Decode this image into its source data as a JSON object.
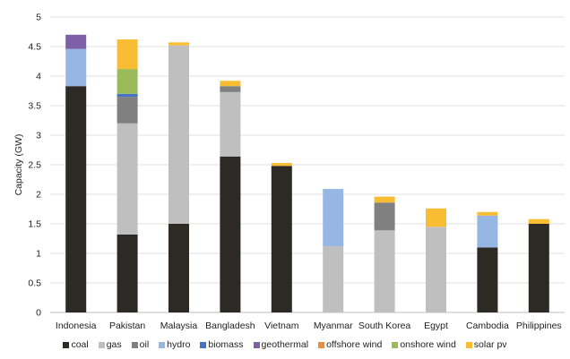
{
  "chart_data": {
    "type": "bar",
    "stacked": true,
    "title": "",
    "xlabel": "",
    "ylabel": "Capacity (GW)",
    "ylim": [
      0,
      5
    ],
    "yticks": [
      "0",
      "0.5",
      "1",
      "1.5",
      "2",
      "2.5",
      "3",
      "3.5",
      "4",
      "4.5",
      "5"
    ],
    "grid": true,
    "legend_position": "bottom",
    "categories": [
      "Indonesia",
      "Pakistan",
      "Malaysia",
      "Bangladesh",
      "Vietnam",
      "Myanmar",
      "South Korea",
      "Egypt",
      "Cambodia",
      "Philippines"
    ],
    "series": [
      {
        "name": "coal",
        "color": "#2d2a26",
        "values": [
          3.83,
          1.32,
          1.5,
          2.64,
          2.48,
          0,
          0,
          0,
          1.1,
          1.5
        ]
      },
      {
        "name": "gas",
        "color": "#bfbfbf",
        "values": [
          0,
          1.88,
          3.02,
          1.09,
          0,
          1.12,
          1.39,
          1.45,
          0,
          0
        ]
      },
      {
        "name": "oil",
        "color": "#808080",
        "values": [
          0,
          0.45,
          0,
          0.1,
          0,
          0,
          0.47,
          0,
          0,
          0
        ]
      },
      {
        "name": "hydro",
        "color": "#96b7e4",
        "values": [
          0.63,
          0,
          0,
          0,
          0,
          0.97,
          0,
          0,
          0.54,
          0
        ]
      },
      {
        "name": "biomass",
        "color": "#4472c4",
        "values": [
          0,
          0.05,
          0,
          0,
          0,
          0,
          0,
          0,
          0,
          0
        ]
      },
      {
        "name": "geothermal",
        "color": "#7f5fa8",
        "values": [
          0.24,
          0,
          0,
          0,
          0,
          0,
          0,
          0,
          0,
          0
        ]
      },
      {
        "name": "offshore wind",
        "color": "#ed8c3b",
        "values": [
          0,
          0,
          0,
          0,
          0,
          0,
          0,
          0,
          0,
          0
        ]
      },
      {
        "name": "onshore wind",
        "color": "#9bbb59",
        "values": [
          0,
          0.42,
          0,
          0,
          0,
          0,
          0,
          0,
          0,
          0
        ]
      },
      {
        "name": "solar pv",
        "color": "#f8bd32",
        "values": [
          0,
          0.5,
          0.05,
          0.09,
          0.05,
          0,
          0.1,
          0.31,
          0.06,
          0.08
        ]
      }
    ]
  }
}
